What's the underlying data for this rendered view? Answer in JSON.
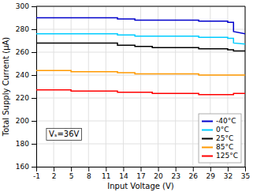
{
  "chart_data": {
    "type": "line",
    "xlabel": "Input Voltage (V)",
    "ylabel": "Total Supply Current (μA)",
    "annotation": "Vₛ=36V",
    "xlim": [
      -1,
      35
    ],
    "ylim": [
      160,
      300
    ],
    "xticks": [
      -1,
      2,
      5,
      8,
      11,
      14,
      17,
      20,
      23,
      26,
      29,
      32,
      35
    ],
    "yticks": [
      160,
      180,
      200,
      220,
      240,
      260,
      280,
      300
    ],
    "grid": true,
    "legend": "lower right",
    "series": [
      {
        "name": "-40°C",
        "color": "#0000CC",
        "x": [
          -1,
          1,
          5,
          13,
          13,
          16,
          16,
          19,
          19,
          27,
          27,
          32,
          32,
          33,
          33,
          35
        ],
        "values": [
          290,
          290,
          290,
          290,
          289,
          289,
          288,
          288,
          288,
          288,
          287,
          287,
          286,
          286,
          278,
          276
        ]
      },
      {
        "name": "0°C",
        "color": "#00CCFF",
        "x": [
          -1,
          1,
          5,
          13,
          13,
          16,
          16,
          19,
          19,
          27,
          27,
          32,
          32,
          33,
          33,
          35
        ],
        "values": [
          276,
          276,
          276,
          276,
          275,
          275,
          274,
          274,
          274,
          274,
          273,
          273,
          272,
          272,
          268,
          267
        ]
      },
      {
        "name": "25°C",
        "color": "#000000",
        "x": [
          -1,
          1,
          5,
          13,
          13,
          16,
          16,
          19,
          19,
          27,
          27,
          32,
          32,
          33,
          33,
          35
        ],
        "values": [
          268,
          268,
          268,
          268,
          266,
          266,
          265,
          265,
          264,
          264,
          263,
          263,
          262,
          262,
          261,
          261
        ]
      },
      {
        "name": "85°C",
        "color": "#FF9900",
        "x": [
          -1,
          1,
          5,
          5,
          13,
          13,
          16,
          16,
          19,
          19,
          27,
          27,
          32,
          32,
          33,
          33,
          35
        ],
        "values": [
          244,
          244,
          244,
          243,
          243,
          242,
          242,
          241,
          241,
          241,
          241,
          240,
          240,
          240,
          240,
          240,
          240
        ]
      },
      {
        "name": "125°C",
        "color": "#FF0000",
        "x": [
          -1,
          1,
          5,
          5,
          13,
          13,
          16,
          16,
          19,
          19,
          27,
          27,
          32,
          32,
          33,
          33,
          35
        ],
        "values": [
          227,
          227,
          227,
          226,
          226,
          225,
          225,
          225,
          225,
          224,
          224,
          223,
          223,
          223,
          223,
          224,
          224
        ]
      }
    ]
  }
}
